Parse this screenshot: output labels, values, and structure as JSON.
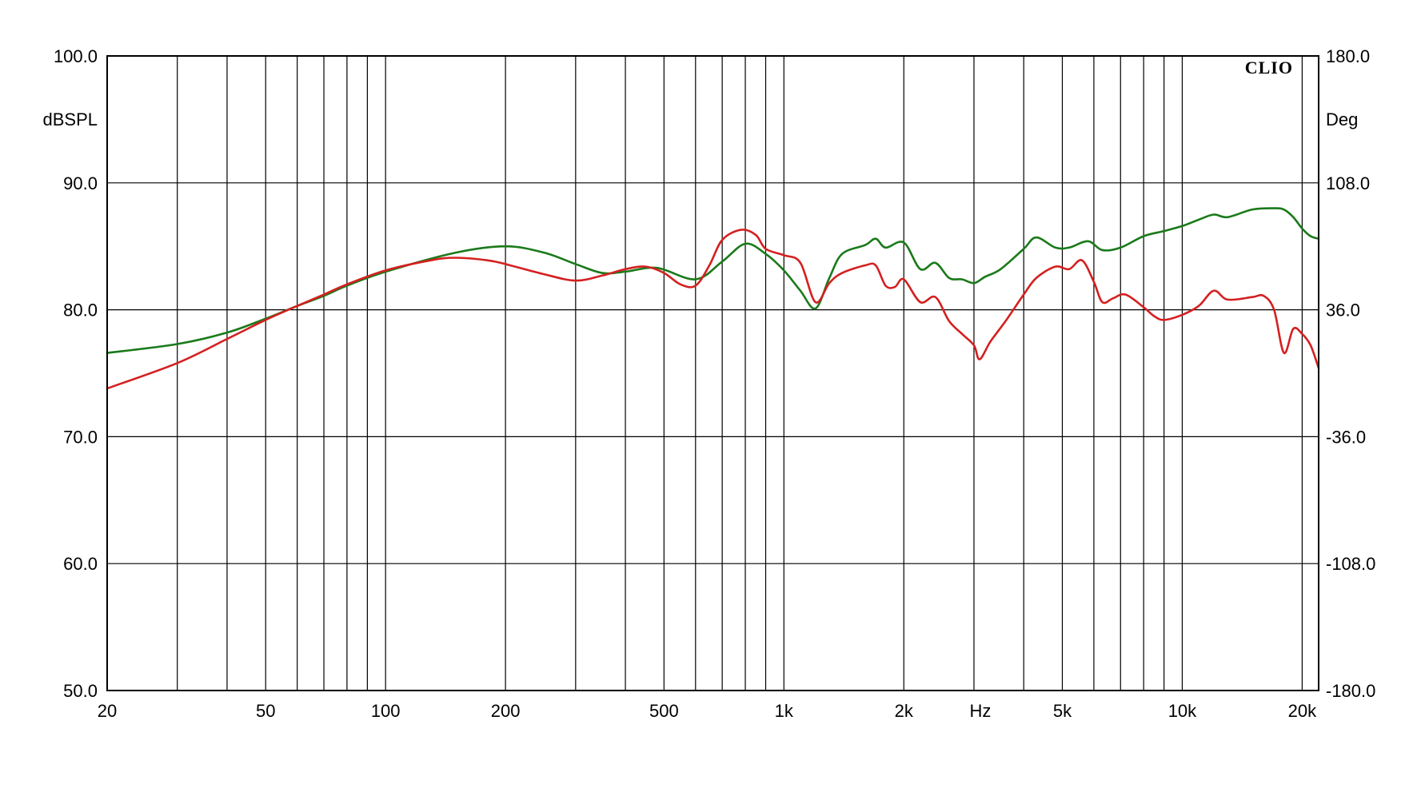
{
  "chart_data": {
    "type": "line",
    "brand": "CLIO",
    "xlabel": "Hz",
    "ylabel": "dBSPL",
    "y2label": "Deg",
    "xscale": "log",
    "xlim": [
      20,
      22000
    ],
    "ylim": [
      50,
      100
    ],
    "y2lim": [
      -180,
      180
    ],
    "grid": true,
    "x_ticks": [
      {
        "value": 20,
        "label": "20"
      },
      {
        "value": 50,
        "label": "50"
      },
      {
        "value": 100,
        "label": "100"
      },
      {
        "value": 200,
        "label": "200"
      },
      {
        "value": 500,
        "label": "500"
      },
      {
        "value": 1000,
        "label": "1k"
      },
      {
        "value": 2000,
        "label": "2k"
      },
      {
        "value": 5000,
        "label": "5k"
      },
      {
        "value": 10000,
        "label": "10k"
      },
      {
        "value": 20000,
        "label": "20k"
      }
    ],
    "x_grid": [
      20,
      30,
      40,
      50,
      60,
      70,
      80,
      90,
      100,
      200,
      300,
      400,
      500,
      600,
      700,
      800,
      900,
      1000,
      2000,
      3000,
      4000,
      5000,
      6000,
      7000,
      8000,
      9000,
      10000,
      20000
    ],
    "y_ticks": [
      {
        "value": 100,
        "label": "100.0"
      },
      {
        "value": 90,
        "label": "90.0"
      },
      {
        "value": 80,
        "label": "80.0"
      },
      {
        "value": 70,
        "label": "70.0"
      },
      {
        "value": 60,
        "label": "60.0"
      },
      {
        "value": 50,
        "label": "50.0"
      }
    ],
    "y2_ticks": [
      {
        "value": 180,
        "label": "180.0"
      },
      {
        "value": 108,
        "label": "108.0"
      },
      {
        "value": 36,
        "label": "36.0"
      },
      {
        "value": -36,
        "label": "-36.0"
      },
      {
        "value": -108,
        "label": "-108.0"
      },
      {
        "value": -180,
        "label": "-180.0"
      }
    ],
    "series": [
      {
        "color": "#1a7a1a",
        "points": [
          [
            20,
            76.6
          ],
          [
            30,
            77.3
          ],
          [
            40,
            78.2
          ],
          [
            50,
            79.3
          ],
          [
            60,
            80.3
          ],
          [
            70,
            81.1
          ],
          [
            80,
            81.9
          ],
          [
            100,
            83.0
          ],
          [
            150,
            84.5
          ],
          [
            200,
            85.0
          ],
          [
            250,
            84.5
          ],
          [
            300,
            83.6
          ],
          [
            350,
            82.9
          ],
          [
            400,
            83.0
          ],
          [
            480,
            83.3
          ],
          [
            600,
            82.4
          ],
          [
            700,
            83.8
          ],
          [
            800,
            85.2
          ],
          [
            900,
            84.4
          ],
          [
            1000,
            83.1
          ],
          [
            1100,
            81.5
          ],
          [
            1200,
            80.1
          ],
          [
            1300,
            82.5
          ],
          [
            1400,
            84.4
          ],
          [
            1600,
            85.1
          ],
          [
            1700,
            85.6
          ],
          [
            1800,
            84.9
          ],
          [
            2000,
            85.3
          ],
          [
            2200,
            83.2
          ],
          [
            2400,
            83.7
          ],
          [
            2600,
            82.5
          ],
          [
            2800,
            82.4
          ],
          [
            3000,
            82.1
          ],
          [
            3200,
            82.6
          ],
          [
            3500,
            83.2
          ],
          [
            4000,
            84.8
          ],
          [
            4300,
            85.7
          ],
          [
            4800,
            84.9
          ],
          [
            5200,
            84.9
          ],
          [
            5800,
            85.4
          ],
          [
            6300,
            84.7
          ],
          [
            7000,
            84.9
          ],
          [
            8000,
            85.8
          ],
          [
            9000,
            86.2
          ],
          [
            10000,
            86.6
          ],
          [
            11000,
            87.1
          ],
          [
            12000,
            87.5
          ],
          [
            13000,
            87.3
          ],
          [
            15000,
            87.9
          ],
          [
            17000,
            88.0
          ],
          [
            18000,
            87.9
          ],
          [
            19000,
            87.3
          ],
          [
            20000,
            86.4
          ],
          [
            21000,
            85.8
          ],
          [
            22000,
            85.6
          ]
        ]
      },
      {
        "color": "#d42020",
        "points": [
          [
            20,
            73.8
          ],
          [
            30,
            75.8
          ],
          [
            40,
            77.7
          ],
          [
            50,
            79.2
          ],
          [
            60,
            80.3
          ],
          [
            70,
            81.2
          ],
          [
            80,
            82.0
          ],
          [
            100,
            83.1
          ],
          [
            130,
            83.9
          ],
          [
            150,
            84.1
          ],
          [
            180,
            83.9
          ],
          [
            200,
            83.6
          ],
          [
            250,
            82.8
          ],
          [
            300,
            82.3
          ],
          [
            350,
            82.7
          ],
          [
            400,
            83.2
          ],
          [
            450,
            83.4
          ],
          [
            500,
            82.9
          ],
          [
            550,
            82.0
          ],
          [
            600,
            81.9
          ],
          [
            650,
            83.5
          ],
          [
            700,
            85.5
          ],
          [
            780,
            86.3
          ],
          [
            850,
            85.9
          ],
          [
            900,
            84.8
          ],
          [
            1000,
            84.3
          ],
          [
            1100,
            83.7
          ],
          [
            1200,
            80.6
          ],
          [
            1300,
            82.1
          ],
          [
            1400,
            82.9
          ],
          [
            1600,
            83.5
          ],
          [
            1700,
            83.5
          ],
          [
            1800,
            81.9
          ],
          [
            1900,
            81.8
          ],
          [
            2000,
            82.4
          ],
          [
            2200,
            80.6
          ],
          [
            2400,
            81.0
          ],
          [
            2600,
            79.1
          ],
          [
            2800,
            78.1
          ],
          [
            3000,
            77.2
          ],
          [
            3100,
            76.1
          ],
          [
            3300,
            77.5
          ],
          [
            3600,
            79.1
          ],
          [
            4000,
            81.2
          ],
          [
            4300,
            82.5
          ],
          [
            4800,
            83.4
          ],
          [
            5200,
            83.2
          ],
          [
            5600,
            83.9
          ],
          [
            6000,
            82.2
          ],
          [
            6300,
            80.6
          ],
          [
            6700,
            80.9
          ],
          [
            7200,
            81.2
          ],
          [
            8000,
            80.2
          ],
          [
            8500,
            79.5
          ],
          [
            9000,
            79.2
          ],
          [
            10000,
            79.6
          ],
          [
            11000,
            80.3
          ],
          [
            12000,
            81.5
          ],
          [
            13000,
            80.8
          ],
          [
            15000,
            81.0
          ],
          [
            16000,
            81.1
          ],
          [
            17000,
            80.0
          ],
          [
            18000,
            76.6
          ],
          [
            19000,
            78.5
          ],
          [
            20000,
            78.1
          ],
          [
            21000,
            77.2
          ],
          [
            22000,
            75.4
          ]
        ]
      }
    ]
  }
}
